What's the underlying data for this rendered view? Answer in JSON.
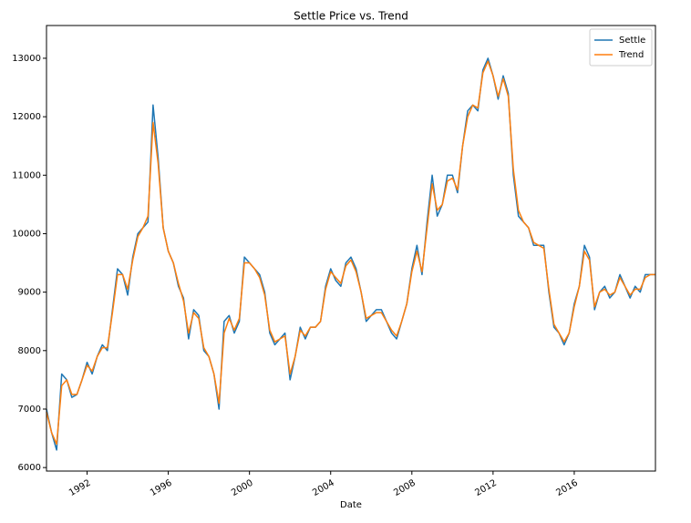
{
  "chart_data": {
    "type": "line",
    "title": "Settle Price vs. Trend",
    "x_label": "Date",
    "x": [
      1990,
      1990.25,
      1990.5,
      1990.75,
      1991,
      1991.25,
      1991.5,
      1991.75,
      1992,
      1992.25,
      1992.5,
      1992.75,
      1993,
      1993.25,
      1993.5,
      1993.75,
      1994,
      1994.25,
      1994.5,
      1994.75,
      1995,
      1995.25,
      1995.5,
      1995.75,
      1996,
      1996.25,
      1996.5,
      1996.75,
      1997,
      1997.25,
      1997.5,
      1997.75,
      1998,
      1998.25,
      1998.5,
      1998.75,
      1999,
      1999.25,
      1999.5,
      1999.75,
      2000,
      2000.25,
      2000.5,
      2000.75,
      2001,
      2001.25,
      2001.5,
      2001.75,
      2002,
      2002.25,
      2002.5,
      2002.75,
      2003,
      2003.25,
      2003.5,
      2003.75,
      2004,
      2004.25,
      2004.5,
      2004.75,
      2005,
      2005.25,
      2005.5,
      2005.75,
      2006,
      2006.25,
      2006.5,
      2006.75,
      2007,
      2007.25,
      2007.5,
      2007.75,
      2008,
      2008.25,
      2008.5,
      2008.75,
      2009,
      2009.25,
      2009.5,
      2009.75,
      2010,
      2010.25,
      2010.5,
      2010.75,
      2011,
      2011.25,
      2011.5,
      2011.75,
      2012,
      2012.25,
      2012.5,
      2012.75,
      2013,
      2013.25,
      2013.5,
      2013.75,
      2014,
      2014.25,
      2014.5,
      2014.75,
      2015,
      2015.25,
      2015.5,
      2015.75,
      2016,
      2016.25,
      2016.5,
      2016.75,
      2017,
      2017.25,
      2017.5,
      2017.75,
      2018,
      2018.25,
      2018.5,
      2018.75,
      2019,
      2019.25,
      2019.5,
      2019.75,
      2020
    ],
    "series": [
      {
        "name": "Settle",
        "color": "#1f77b4",
        "values": [
          7000,
          6600,
          6300,
          7600,
          7500,
          7200,
          7250,
          7500,
          7800,
          7600,
          7900,
          8100,
          8000,
          8700,
          9400,
          9300,
          8950,
          9600,
          10000,
          10100,
          10200,
          12200,
          11300,
          10100,
          9700,
          9500,
          9100,
          8900,
          8200,
          8700,
          8600,
          8000,
          7900,
          7600,
          7000,
          8500,
          8600,
          8300,
          8500,
          9600,
          9500,
          9400,
          9300,
          9000,
          8300,
          8100,
          8200,
          8300,
          7500,
          7900,
          8400,
          8200,
          8400,
          8400,
          8500,
          9100,
          9400,
          9200,
          9100,
          9500,
          9600,
          9400,
          9000,
          8500,
          8600,
          8700,
          8700,
          8500,
          8300,
          8200,
          8500,
          8800,
          9400,
          9800,
          9300,
          10200,
          11000,
          10300,
          10500,
          11000,
          11000,
          10700,
          11500,
          12100,
          12200,
          12100,
          12800,
          13000,
          12700,
          12300,
          12700,
          12400,
          11000,
          10300,
          10200,
          10100,
          9800,
          9800,
          9800,
          9000,
          8400,
          8300,
          8100,
          8300,
          8800,
          9100,
          9800,
          9600,
          8700,
          9000,
          9100,
          8900,
          9000,
          9300,
          9100,
          8900,
          9100,
          9000,
          9300,
          9300,
          9300
        ]
      },
      {
        "name": "Trend",
        "color": "#ff7f0e",
        "values": [
          6950,
          6600,
          6400,
          7400,
          7500,
          7250,
          7250,
          7500,
          7750,
          7650,
          7900,
          8050,
          8050,
          8650,
          9300,
          9300,
          9050,
          9550,
          9950,
          10100,
          10300,
          11900,
          11200,
          10100,
          9700,
          9500,
          9150,
          8850,
          8300,
          8650,
          8550,
          8050,
          7900,
          7600,
          7100,
          8300,
          8550,
          8350,
          8550,
          9500,
          9500,
          9400,
          9250,
          8950,
          8350,
          8150,
          8200,
          8250,
          7600,
          7900,
          8350,
          8250,
          8400,
          8400,
          8500,
          9050,
          9350,
          9250,
          9150,
          9450,
          9550,
          9350,
          9000,
          8550,
          8600,
          8650,
          8650,
          8500,
          8350,
          8250,
          8500,
          8800,
          9350,
          9700,
          9350,
          10100,
          10850,
          10400,
          10500,
          10900,
          10950,
          10750,
          11500,
          12000,
          12200,
          12150,
          12750,
          12950,
          12700,
          12350,
          12650,
          12350,
          11100,
          10400,
          10200,
          10100,
          9850,
          9800,
          9750,
          9050,
          8450,
          8300,
          8150,
          8300,
          8750,
          9100,
          9700,
          9550,
          8750,
          9000,
          9050,
          8950,
          9000,
          9250,
          9100,
          8950,
          9050,
          9050,
          9250,
          9300,
          9300
        ]
      }
    ],
    "xlim": [
      1990,
      2020
    ],
    "xticks": [
      1992,
      1996,
      2000,
      2004,
      2008,
      2012,
      2016
    ],
    "ylim": [
      5940,
      13560
    ],
    "yticks": [
      6000,
      7000,
      8000,
      9000,
      10000,
      11000,
      12000,
      13000
    ],
    "legend": "upper right"
  }
}
